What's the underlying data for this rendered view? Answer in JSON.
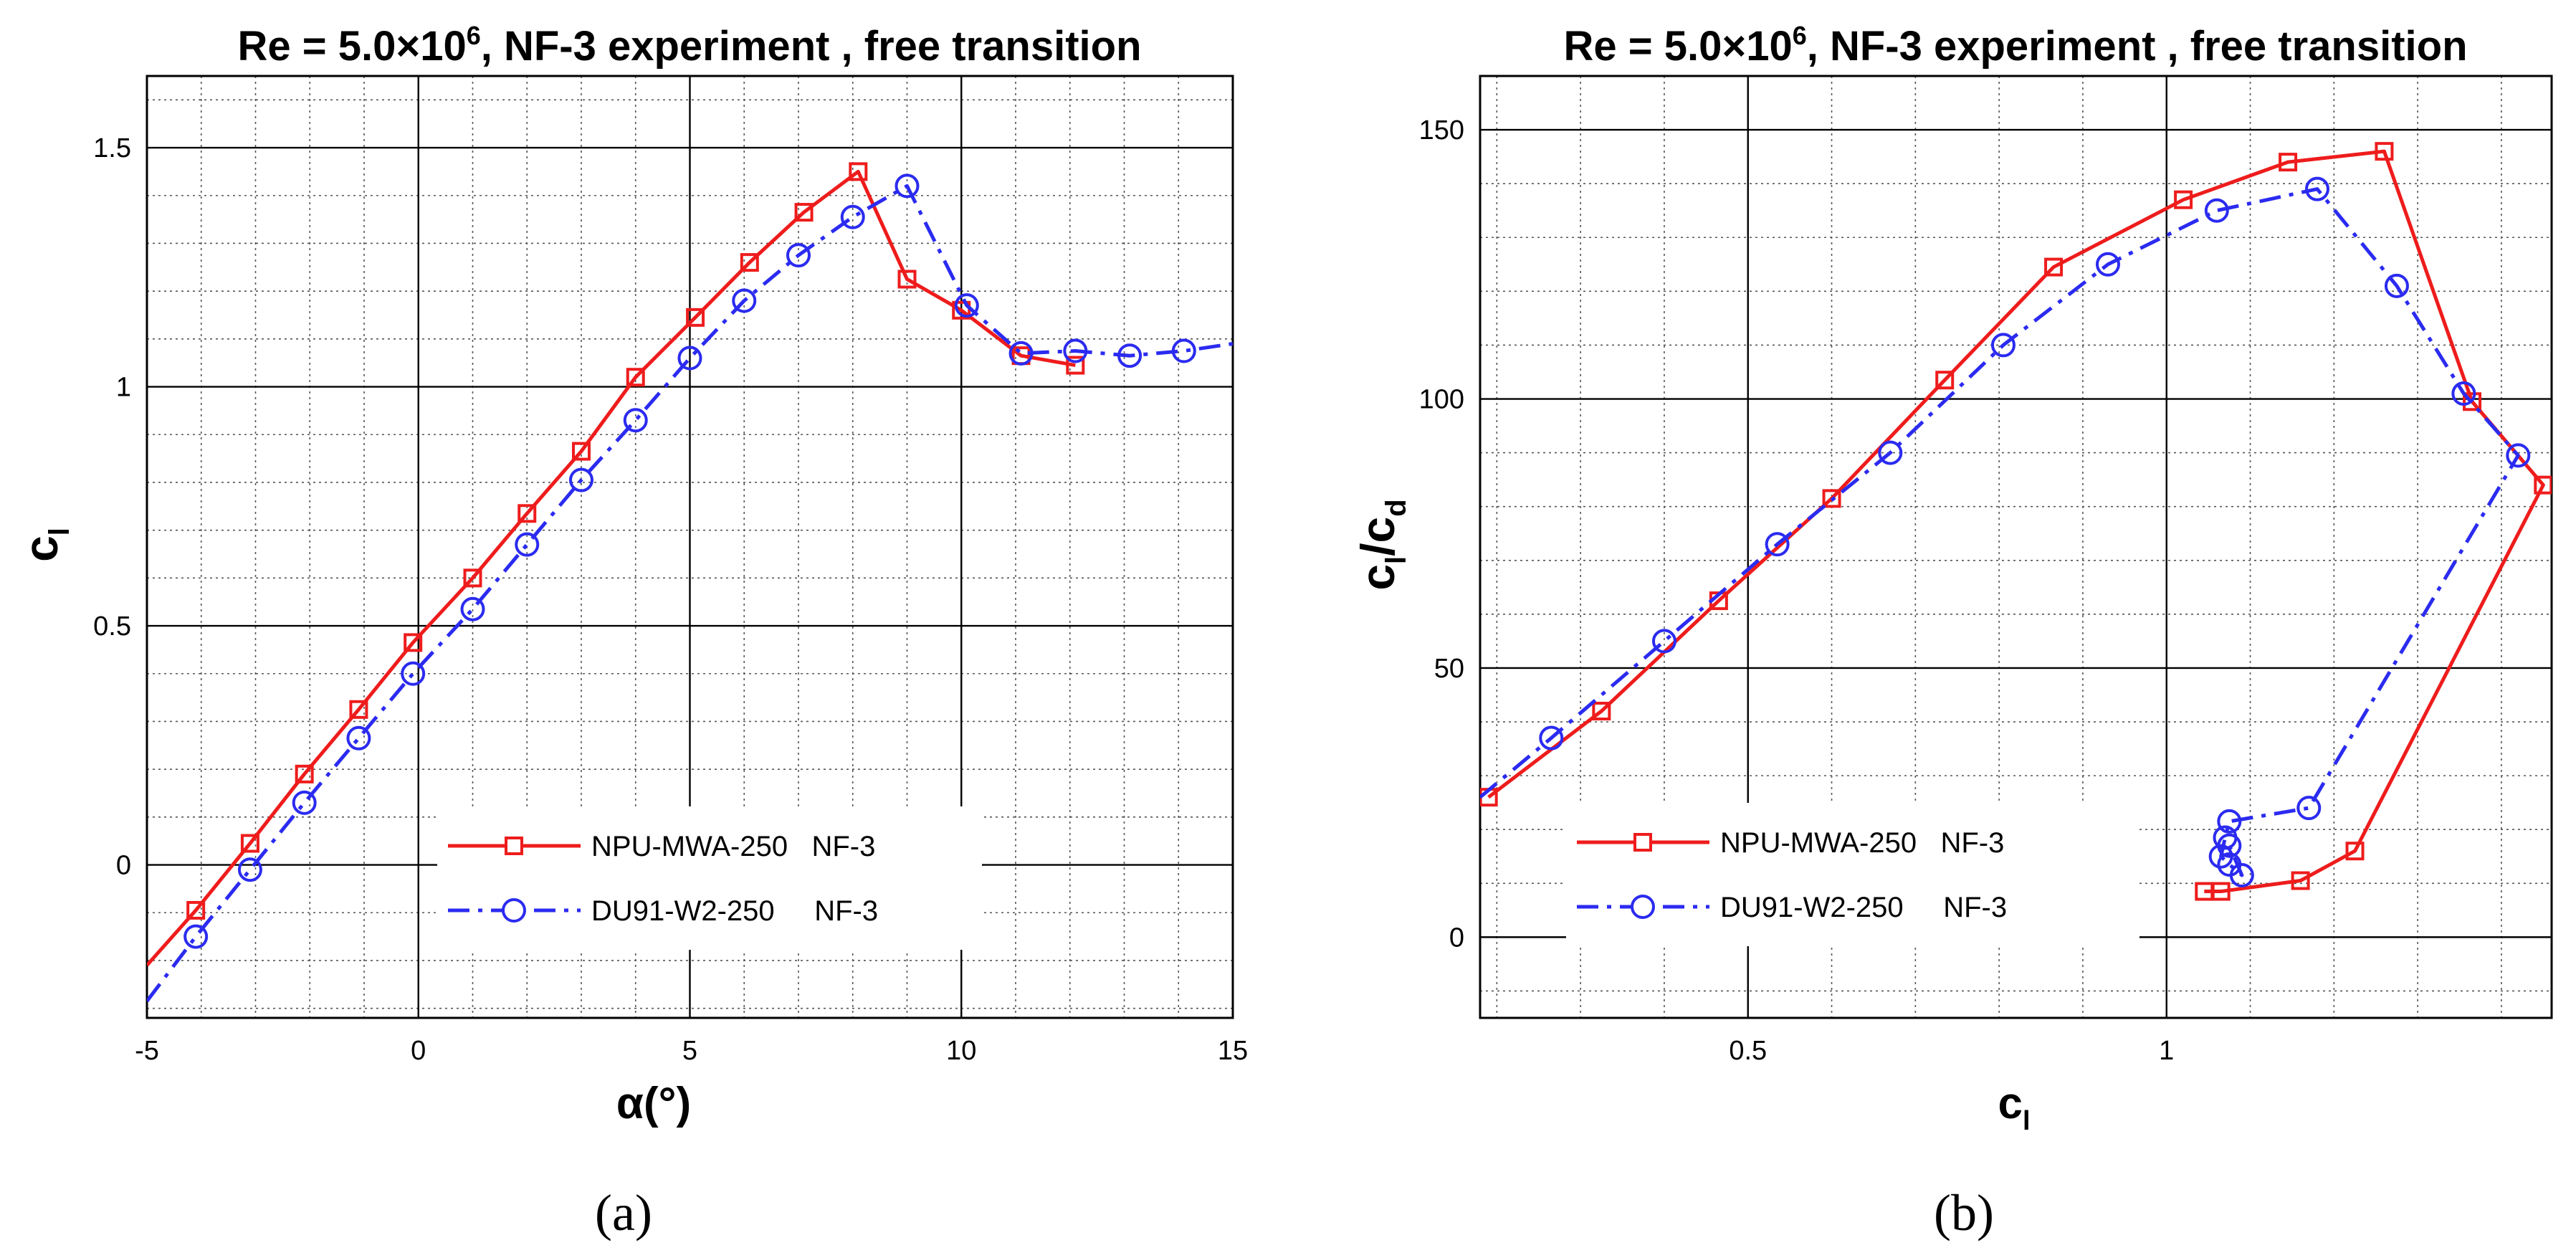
{
  "chart_data": [
    {
      "type": "line",
      "panel_label": "(a)",
      "title": "Re = 5.0×10^6,  NF-3 experiment , free transition",
      "title_parts": {
        "prefix": "Re = 5.0×10",
        "exp": "6",
        "suffix": ",  NF-3 experiment , free transition"
      },
      "xlabel": "α(°)",
      "ylabel": "c_l",
      "ylabel_parts": {
        "main": "c",
        "sub": "l"
      },
      "xlim": [
        -5,
        15
      ],
      "ylim": [
        -0.32,
        1.65
      ],
      "xticks": [
        -5,
        0,
        5,
        10,
        15
      ],
      "xtick_labels": [
        "-5",
        "0",
        "5",
        "10",
        "15"
      ],
      "yticks": [
        0,
        0.5,
        1,
        1.5
      ],
      "ytick_labels": [
        "0",
        "0.5",
        "1",
        "1.5"
      ],
      "grid": true,
      "legend_position": "bottom-right",
      "series": [
        {
          "name": "NPU-MWA-250   NF-3",
          "color": "#ee1c1c",
          "marker": "square",
          "dash": "solid",
          "x": [
            -5,
            -4.1,
            -3.1,
            -2.1,
            -1.1,
            -0.1,
            1,
            2,
            3,
            4,
            5.1,
            6.1,
            7.1,
            8.1,
            9,
            10,
            11.1,
            12.1
          ],
          "y": [
            -0.21,
            -0.095,
            0.045,
            0.19,
            0.325,
            0.465,
            0.6,
            0.735,
            0.865,
            1.02,
            1.145,
            1.26,
            1.365,
            1.45,
            1.225,
            1.16,
            1.065,
            1.045
          ],
          "marker_from": 1,
          "marker_to": 17
        },
        {
          "name": "DU91-W2-250     NF-3",
          "color": "#2b2bf0",
          "marker": "circle",
          "dash": "dashdot",
          "x": [
            -5,
            -4.1,
            -3.1,
            -2.1,
            -1.1,
            -0.1,
            1,
            2,
            3,
            4,
            5,
            6,
            7,
            8,
            9,
            10.1,
            11.1,
            12.1,
            13.1,
            14.1,
            15
          ],
          "y": [
            -0.285,
            -0.15,
            -0.01,
            0.13,
            0.265,
            0.4,
            0.535,
            0.67,
            0.805,
            0.93,
            1.06,
            1.18,
            1.275,
            1.355,
            1.42,
            1.17,
            1.07,
            1.075,
            1.065,
            1.075,
            1.09
          ],
          "marker_from": 1,
          "marker_to": 19
        }
      ]
    },
    {
      "type": "line",
      "panel_label": "(b)",
      "title": "Re = 5.0×10^6,  NF-3 experiment , free transition",
      "title_parts": {
        "prefix": "Re = 5.0×10",
        "exp": "6",
        "suffix": ",  NF-3 experiment , free transition"
      },
      "xlabel": "c_l",
      "xlabel_parts": {
        "main": "c",
        "sub": "l"
      },
      "ylabel": "c_l/c_d",
      "ylabel_parts": {
        "main": "c",
        "sub": "l",
        "slash": "/c",
        "sub2": "d"
      },
      "xlim": [
        0.18,
        1.46
      ],
      "ylim": [
        -15,
        160
      ],
      "xticks": [
        0.5,
        1
      ],
      "xtick_labels": [
        "0.5",
        "1"
      ],
      "yticks": [
        0,
        50,
        100,
        150
      ],
      "ytick_labels": [
        "0",
        "50",
        "100",
        "150"
      ],
      "grid": true,
      "legend_position": "bottom-right",
      "series": [
        {
          "name": "NPU-MWA-250   NF-3",
          "color": "#ee1c1c",
          "marker": "square",
          "dash": "solid",
          "x": [
            0.19,
            0.325,
            0.465,
            0.6,
            0.735,
            0.865,
            1.02,
            1.145,
            1.26,
            1.365,
            1.45,
            1.225,
            1.16,
            1.065,
            1.045
          ],
          "y": [
            26,
            42,
            62.5,
            81.5,
            103.5,
            124.5,
            137,
            144,
            146,
            99.5,
            84,
            16,
            10.5,
            8.5,
            8.5
          ],
          "marker_from": 0,
          "marker_to": 14
        },
        {
          "name": "DU91-W2-250     NF-3",
          "color": "#2b2bf0",
          "marker": "circle",
          "dash": "dashdot",
          "x": [
            0.18,
            0.265,
            0.4,
            0.535,
            0.67,
            0.805,
            0.93,
            1.06,
            1.18,
            1.275,
            1.355,
            1.42,
            1.17,
            1.075,
            1.07,
            1.065,
            1.075,
            1.09,
            1.075
          ],
          "y": [
            26,
            37,
            55,
            73,
            90,
            110,
            125,
            135,
            139,
            121,
            101,
            89.5,
            24,
            21.5,
            18.5,
            15,
            13.5,
            11.5,
            17
          ],
          "marker_from": 1,
          "marker_to": 18
        }
      ]
    }
  ]
}
